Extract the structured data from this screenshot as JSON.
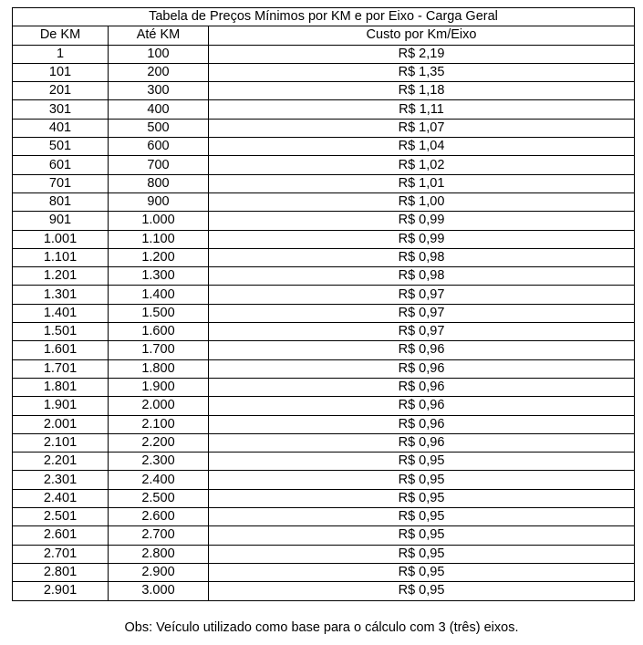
{
  "title": "Tabela de Preços Mínimos por KM e por Eixo - Carga Geral",
  "headers": [
    "De KM",
    "Até KM",
    "Custo por Km/Eixo"
  ],
  "rows": [
    [
      "1",
      "100",
      "R$ 2,19"
    ],
    [
      "101",
      "200",
      "R$ 1,35"
    ],
    [
      "201",
      "300",
      "R$ 1,18"
    ],
    [
      "301",
      "400",
      "R$ 1,11"
    ],
    [
      "401",
      "500",
      "R$ 1,07"
    ],
    [
      "501",
      "600",
      "R$ 1,04"
    ],
    [
      "601",
      "700",
      "R$ 1,02"
    ],
    [
      "701",
      "800",
      "R$ 1,01"
    ],
    [
      "801",
      "900",
      "R$ 1,00"
    ],
    [
      "901",
      "1.000",
      "R$ 0,99"
    ],
    [
      "1.001",
      "1.100",
      "R$ 0,99"
    ],
    [
      "1.101",
      "1.200",
      "R$ 0,98"
    ],
    [
      "1.201",
      "1.300",
      "R$ 0,98"
    ],
    [
      "1.301",
      "1.400",
      "R$ 0,97"
    ],
    [
      "1.401",
      "1.500",
      "R$ 0,97"
    ],
    [
      "1.501",
      "1.600",
      "R$ 0,97"
    ],
    [
      "1.601",
      "1.700",
      "R$ 0,96"
    ],
    [
      "1.701",
      "1.800",
      "R$ 0,96"
    ],
    [
      "1.801",
      "1.900",
      "R$ 0,96"
    ],
    [
      "1.901",
      "2.000",
      "R$ 0,96"
    ],
    [
      "2.001",
      "2.100",
      "R$ 0,96"
    ],
    [
      "2.101",
      "2.200",
      "R$ 0,96"
    ],
    [
      "2.201",
      "2.300",
      "R$ 0,95"
    ],
    [
      "2.301",
      "2.400",
      "R$ 0,95"
    ],
    [
      "2.401",
      "2.500",
      "R$ 0,95"
    ],
    [
      "2.501",
      "2.600",
      "R$ 0,95"
    ],
    [
      "2.601",
      "2.700",
      "R$ 0,95"
    ],
    [
      "2.701",
      "2.800",
      "R$ 0,95"
    ],
    [
      "2.801",
      "2.900",
      "R$ 0,95"
    ],
    [
      "2.901",
      "3.000",
      "R$ 0,95"
    ]
  ],
  "note": "Obs: Veículo utilizado como base para o cálculo com 3 (três) eixos."
}
